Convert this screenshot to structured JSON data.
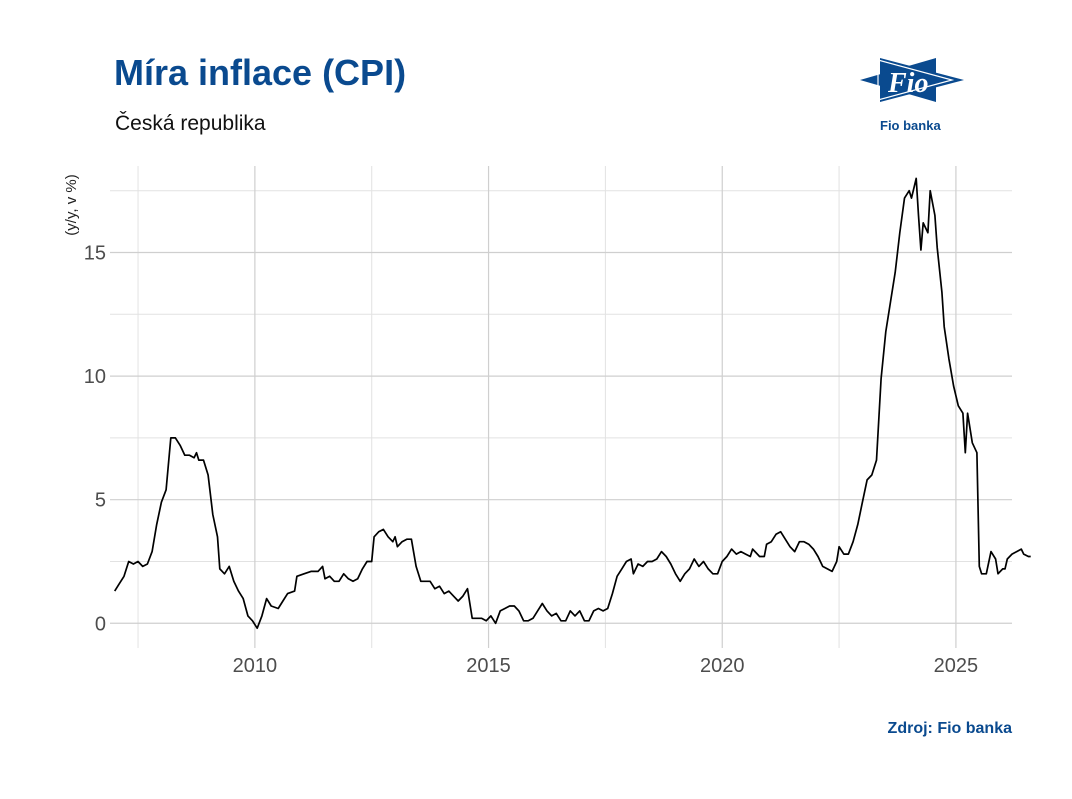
{
  "title": "Míra inflace (CPI)",
  "subtitle": "Česká republika",
  "logo": {
    "text": "Fio",
    "caption": "Fio banka",
    "color": "#0a4a8f"
  },
  "source": "Zdroj: Fio banka",
  "chart_data": {
    "type": "line",
    "ylabel": "(y/y, v %)",
    "xlim": [
      2006.9,
      2026.2
    ],
    "ylim": [
      -1.0,
      18.5
    ],
    "x_ticks": [
      2010,
      2015,
      2020,
      2025
    ],
    "y_ticks": [
      0,
      5,
      10,
      15
    ],
    "grid": true,
    "line_color": "#000000",
    "series": [
      {
        "points": [
          [
            2007.0,
            1.3
          ],
          [
            2007.1,
            1.6
          ],
          [
            2007.2,
            1.9
          ],
          [
            2007.3,
            2.5
          ],
          [
            2007.4,
            2.4
          ],
          [
            2007.5,
            2.5
          ],
          [
            2007.6,
            2.3
          ],
          [
            2007.7,
            2.4
          ],
          [
            2007.8,
            2.9
          ],
          [
            2007.9,
            4.0
          ],
          [
            2008.0,
            4.9
          ],
          [
            2008.1,
            5.4
          ],
          [
            2008.2,
            7.5
          ],
          [
            2008.3,
            7.5
          ],
          [
            2008.4,
            7.2
          ],
          [
            2008.5,
            6.8
          ],
          [
            2008.6,
            6.8
          ],
          [
            2008.7,
            6.7
          ],
          [
            2008.75,
            6.9
          ],
          [
            2008.8,
            6.6
          ],
          [
            2008.9,
            6.6
          ],
          [
            2009.0,
            6.0
          ],
          [
            2009.1,
            4.4
          ],
          [
            2009.2,
            3.5
          ],
          [
            2009.25,
            2.2
          ],
          [
            2009.35,
            2.0
          ],
          [
            2009.45,
            2.3
          ],
          [
            2009.55,
            1.7
          ],
          [
            2009.65,
            1.3
          ],
          [
            2009.75,
            1.0
          ],
          [
            2009.85,
            0.3
          ],
          [
            2009.95,
            0.1
          ],
          [
            2010.05,
            -0.2
          ],
          [
            2010.15,
            0.3
          ],
          [
            2010.25,
            1.0
          ],
          [
            2010.35,
            0.7
          ],
          [
            2010.5,
            0.6
          ],
          [
            2010.6,
            0.9
          ],
          [
            2010.7,
            1.2
          ],
          [
            2010.85,
            1.3
          ],
          [
            2010.9,
            1.9
          ],
          [
            2011.05,
            2.0
          ],
          [
            2011.2,
            2.1
          ],
          [
            2011.35,
            2.1
          ],
          [
            2011.45,
            2.3
          ],
          [
            2011.5,
            1.8
          ],
          [
            2011.6,
            1.9
          ],
          [
            2011.7,
            1.7
          ],
          [
            2011.8,
            1.7
          ],
          [
            2011.9,
            2.0
          ],
          [
            2012.0,
            1.8
          ],
          [
            2012.1,
            1.7
          ],
          [
            2012.2,
            1.8
          ],
          [
            2012.3,
            2.2
          ],
          [
            2012.4,
            2.5
          ],
          [
            2012.5,
            2.5
          ],
          [
            2012.55,
            3.5
          ],
          [
            2012.65,
            3.7
          ],
          [
            2012.75,
            3.8
          ],
          [
            2012.85,
            3.5
          ],
          [
            2012.95,
            3.3
          ],
          [
            2013.0,
            3.5
          ],
          [
            2013.05,
            3.1
          ],
          [
            2013.15,
            3.3
          ],
          [
            2013.25,
            3.4
          ],
          [
            2013.35,
            3.4
          ],
          [
            2013.45,
            2.3
          ],
          [
            2013.55,
            1.7
          ],
          [
            2013.65,
            1.7
          ],
          [
            2013.75,
            1.7
          ],
          [
            2013.85,
            1.4
          ],
          [
            2013.95,
            1.5
          ],
          [
            2014.05,
            1.2
          ],
          [
            2014.15,
            1.3
          ],
          [
            2014.25,
            1.1
          ],
          [
            2014.35,
            0.9
          ],
          [
            2014.45,
            1.1
          ],
          [
            2014.55,
            1.4
          ],
          [
            2014.65,
            0.2
          ],
          [
            2014.75,
            0.2
          ],
          [
            2014.85,
            0.2
          ],
          [
            2014.95,
            0.1
          ],
          [
            2015.05,
            0.3
          ],
          [
            2015.15,
            0.0
          ],
          [
            2015.25,
            0.5
          ],
          [
            2015.35,
            0.6
          ],
          [
            2015.45,
            0.7
          ],
          [
            2015.55,
            0.7
          ],
          [
            2015.65,
            0.5
          ],
          [
            2015.75,
            0.1
          ],
          [
            2015.85,
            0.1
          ],
          [
            2015.95,
            0.2
          ],
          [
            2016.05,
            0.5
          ],
          [
            2016.15,
            0.8
          ],
          [
            2016.25,
            0.5
          ],
          [
            2016.35,
            0.3
          ],
          [
            2016.45,
            0.4
          ],
          [
            2016.55,
            0.1
          ],
          [
            2016.65,
            0.1
          ],
          [
            2016.75,
            0.5
          ],
          [
            2016.85,
            0.3
          ],
          [
            2016.95,
            0.5
          ],
          [
            2017.05,
            0.1
          ],
          [
            2017.15,
            0.1
          ],
          [
            2017.25,
            0.5
          ],
          [
            2017.35,
            0.6
          ],
          [
            2017.45,
            0.5
          ],
          [
            2017.55,
            0.6
          ],
          [
            2017.65,
            1.2
          ],
          [
            2017.75,
            1.9
          ],
          [
            2017.85,
            2.2
          ],
          [
            2017.95,
            2.5
          ],
          [
            2018.05,
            2.6
          ],
          [
            2018.1,
            2.0
          ],
          [
            2018.2,
            2.4
          ],
          [
            2018.3,
            2.3
          ],
          [
            2018.4,
            2.5
          ],
          [
            2018.5,
            2.5
          ],
          [
            2018.6,
            2.6
          ],
          [
            2018.7,
            2.9
          ],
          [
            2018.8,
            2.7
          ],
          [
            2018.9,
            2.4
          ],
          [
            2019.0,
            2.0
          ],
          [
            2019.1,
            1.7
          ],
          [
            2019.2,
            2.0
          ],
          [
            2019.3,
            2.2
          ],
          [
            2019.4,
            2.6
          ],
          [
            2019.5,
            2.3
          ],
          [
            2019.6,
            2.5
          ],
          [
            2019.7,
            2.2
          ],
          [
            2019.8,
            2.0
          ],
          [
            2019.9,
            2.0
          ],
          [
            2020.0,
            2.5
          ],
          [
            2020.1,
            2.7
          ],
          [
            2020.2,
            3.0
          ],
          [
            2020.3,
            2.8
          ],
          [
            2020.4,
            2.9
          ],
          [
            2020.5,
            2.8
          ],
          [
            2020.6,
            2.7
          ],
          [
            2020.65,
            3.0
          ],
          [
            2020.7,
            2.9
          ],
          [
            2020.8,
            2.7
          ],
          [
            2020.9,
            2.7
          ],
          [
            2020.95,
            3.2
          ],
          [
            2021.05,
            3.3
          ],
          [
            2021.15,
            3.6
          ],
          [
            2021.25,
            3.7
          ],
          [
            2021.35,
            3.4
          ],
          [
            2021.45,
            3.1
          ],
          [
            2021.55,
            2.9
          ],
          [
            2021.65,
            3.3
          ],
          [
            2021.75,
            3.3
          ],
          [
            2021.85,
            3.2
          ],
          [
            2021.95,
            3.0
          ],
          [
            2022.05,
            2.7
          ],
          [
            2022.15,
            2.3
          ],
          [
            2022.25,
            2.2
          ],
          [
            2022.35,
            2.1
          ],
          [
            2022.45,
            2.5
          ],
          [
            2022.5,
            3.1
          ],
          [
            2022.6,
            2.8
          ],
          [
            2022.7,
            2.8
          ],
          [
            2022.8,
            3.3
          ],
          [
            2022.9,
            4.0
          ],
          [
            2023.0,
            4.9
          ],
          [
            2023.1,
            5.8
          ],
          [
            2023.2,
            6.0
          ],
          [
            2023.3,
            6.6
          ],
          [
            2023.4,
            9.9
          ],
          [
            2023.5,
            11.8
          ],
          [
            2023.6,
            13.0
          ],
          [
            2023.7,
            14.2
          ],
          [
            2023.8,
            15.8
          ],
          [
            2023.9,
            17.2
          ],
          [
            2024.0,
            17.5
          ],
          [
            2024.05,
            17.2
          ],
          [
            2024.15,
            18.0
          ],
          [
            2024.2,
            16.5
          ],
          [
            2024.25,
            15.1
          ],
          [
            2024.3,
            16.2
          ],
          [
            2024.4,
            15.8
          ],
          [
            2024.45,
            17.5
          ],
          [
            2024.55,
            16.5
          ],
          [
            2024.6,
            15.2
          ],
          [
            2024.7,
            13.4
          ],
          [
            2024.75,
            12.0
          ],
          [
            2024.85,
            10.7
          ],
          [
            2024.95,
            9.6
          ],
          [
            2025.05,
            8.8
          ],
          [
            2025.15,
            8.5
          ],
          [
            2025.2,
            6.9
          ],
          [
            2025.25,
            8.5
          ],
          [
            2025.35,
            7.3
          ],
          [
            2025.45,
            6.9
          ],
          [
            2025.5,
            2.3
          ],
          [
            2025.55,
            2.0
          ],
          [
            2025.65,
            2.0
          ],
          [
            2025.75,
            2.9
          ],
          [
            2025.85,
            2.6
          ],
          [
            2025.9,
            2.0
          ],
          [
            2026.0,
            2.2
          ],
          [
            2026.05,
            2.2
          ],
          [
            2026.1,
            2.6
          ],
          [
            2026.2,
            2.8
          ],
          [
            2026.3,
            2.9
          ],
          [
            2026.4,
            3.0
          ],
          [
            2026.45,
            2.8
          ],
          [
            2026.55,
            2.7
          ],
          [
            2026.6,
            2.7
          ]
        ]
      }
    ]
  }
}
